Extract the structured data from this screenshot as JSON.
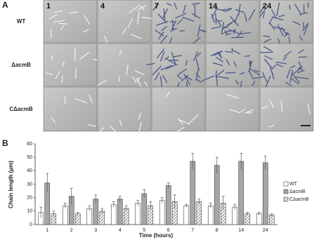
{
  "panel_a": {
    "label": "A",
    "columns": [
      "1",
      "4",
      "7",
      "14",
      "24"
    ],
    "rows": [
      "WT",
      "ΔacmB",
      "CΔacmB"
    ]
  },
  "chart_data": {
    "type": "bar",
    "panel_label": "B",
    "xlabel": "Time (hours)",
    "ylabel": "Chain length (μm)",
    "categories": [
      "1",
      "2",
      "3",
      "4",
      "5",
      "6",
      "7",
      "8",
      "14",
      "24"
    ],
    "series": [
      {
        "name": "WT",
        "color": "#ffffff",
        "values": [
          9,
          14,
          12,
          15,
          16,
          18,
          14,
          14,
          13,
          8
        ],
        "errors": [
          4,
          2,
          2,
          2,
          2,
          2,
          1,
          2,
          2,
          1
        ]
      },
      {
        "name": "ΔacmB",
        "color": "#a6a6a6",
        "values": [
          31,
          21,
          19,
          19,
          23,
          29,
          47,
          44,
          47,
          46
        ],
        "errors": [
          7,
          6,
          3,
          2,
          3,
          2,
          6,
          6,
          6,
          5
        ]
      },
      {
        "name": "CΔacmB",
        "color": "#ffffff",
        "hatch": true,
        "values": [
          8,
          8,
          10,
          12,
          14,
          17,
          17,
          16,
          8,
          7
        ],
        "errors": [
          2,
          1,
          2,
          2,
          3,
          5,
          2,
          5,
          1,
          1
        ]
      }
    ],
    "ylim": [
      0,
      60
    ],
    "yticks": [
      0,
      10,
      20,
      30,
      40,
      50,
      60
    ],
    "legend": "right"
  }
}
